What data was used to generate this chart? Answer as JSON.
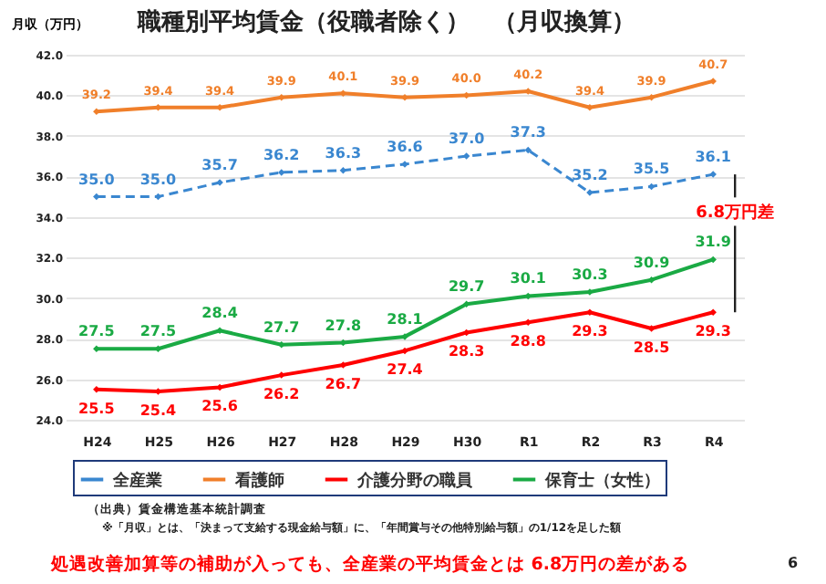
{
  "chart_data": {
    "type": "line",
    "title": "職種別平均賃金（役職者除く）　（月収換算）",
    "ylabel": "月収（万円）",
    "categories": [
      "H24",
      "H25",
      "H26",
      "H27",
      "H28",
      "H29",
      "H30",
      "R1",
      "R2",
      "R3",
      "R4"
    ],
    "series": [
      {
        "name": "全産業",
        "color": "#3a87d0",
        "line_style": "dashed",
        "values": [
          35.0,
          35.0,
          35.7,
          36.2,
          36.3,
          36.6,
          37.0,
          37.3,
          35.2,
          35.5,
          36.1
        ],
        "value_labels": [
          "35.0",
          "35.0",
          "35.7",
          "36.2",
          "36.3",
          "36.6",
          "37.0",
          "37.3",
          "35.2",
          "35.5",
          "36.1"
        ]
      },
      {
        "name": "看護師",
        "color": "#f07f2a",
        "line_style": "solid",
        "values": [
          39.2,
          39.4,
          39.4,
          39.9,
          40.1,
          39.9,
          40.0,
          40.2,
          39.4,
          39.9,
          40.7
        ],
        "value_labels": [
          "39.2",
          "39.4",
          "39.4",
          "39.9",
          "40.1",
          "39.9",
          "40.0",
          "40.2",
          "39.4",
          "39.9",
          "40.7"
        ]
      },
      {
        "name": "介護分野の職員",
        "color": "#ff0000",
        "line_style": "solid",
        "values": [
          25.5,
          25.4,
          25.6,
          26.2,
          26.7,
          27.4,
          28.3,
          28.8,
          29.3,
          28.5,
          29.3
        ],
        "value_labels": [
          "25.5",
          "25.4",
          "25.6",
          "26.2",
          "26.7",
          "27.4",
          "28.3",
          "28.8",
          "29.3",
          "28.5",
          "29.3"
        ]
      },
      {
        "name": "保育士（女性）",
        "color": "#1aaa44",
        "line_style": "solid",
        "values": [
          27.5,
          27.5,
          28.4,
          27.7,
          27.8,
          28.1,
          29.7,
          30.1,
          30.3,
          30.9,
          31.9
        ],
        "value_labels": [
          "27.5",
          "27.5",
          "28.4",
          "27.7",
          "27.8",
          "28.1",
          "29.7",
          "30.1",
          "30.3",
          "30.9",
          "31.9"
        ]
      }
    ],
    "ylim": [
      24,
      42
    ],
    "yticks": [
      {
        "value": 24,
        "label": "24.0"
      },
      {
        "value": 26,
        "label": "26.0"
      },
      {
        "value": 28,
        "label": "28.0"
      },
      {
        "value": 30,
        "label": "30.0"
      },
      {
        "value": 32,
        "label": "32.0"
      },
      {
        "value": 34,
        "label": "34.0"
      },
      {
        "value": 36,
        "label": "36.0"
      },
      {
        "value": 38,
        "label": "38.0"
      },
      {
        "value": 40,
        "label": "40.0"
      },
      {
        "value": 42,
        "label": "42.0"
      }
    ],
    "grid": "y",
    "legend": "bottom",
    "marker": "diamond",
    "annotations": [
      "6.8万円差",
      "（出典）賃金構造基本統計調査",
      "※「月収」とは、「決まって支給する現金給与額」に、「年間賞与その他特別給与額」の1/12を足した額",
      "処遇改善加算等の補助が入っても、全産業の平均賃金とは 6.8万円の差がある",
      "6"
    ]
  }
}
